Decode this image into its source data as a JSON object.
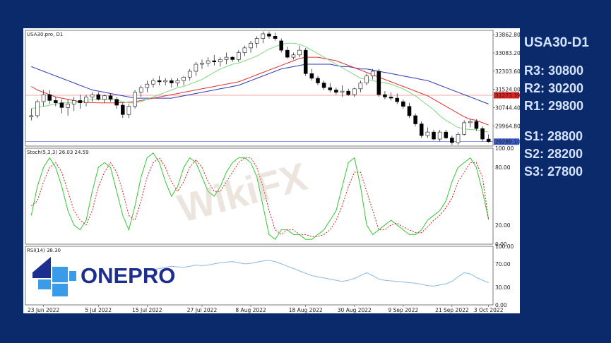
{
  "side_panel": {
    "title": "USA30-D1",
    "resistance": [
      "R3: 30800",
      "R2: 30200",
      "R1: 29800"
    ],
    "support": [
      "S1: 28800",
      "S2: 28200",
      "S3: 27800"
    ]
  },
  "logo": {
    "text": "ONEPRO",
    "icon": "onepro-cross-logo"
  },
  "watermark": {
    "text": "WikiFX"
  },
  "colors": {
    "background": "#0b2a6b",
    "sma_fast": "#7ed87e",
    "sma_mid": "#e03030",
    "sma_slow": "#2a3ab8",
    "stoch_k": "#32c832",
    "stoch_d": "#d02020",
    "rsi": "#8ab8e8",
    "level_line": "#e05050",
    "price_line": "#4a6cc8",
    "logo": "#1c2f8f"
  },
  "chart_data": [
    {
      "type": "candlestick",
      "title": "USA30.pro, D1",
      "x_tick_labels": [
        "23 Jun 2022",
        "5 Jul 2022",
        "15 Jul 2022",
        "27 Jul 2022",
        "8 Aug 2022",
        "18 Aug 2022",
        "30 Aug 2022",
        "9 Sep 2022",
        "21 Sep 2022",
        "3 Oct 2022"
      ],
      "y_tick_labels": [
        "33862.80",
        "33083.20",
        "32303.60",
        "31524.00",
        "30744.40",
        "29964.80"
      ],
      "ylim": [
        29100,
        34050
      ],
      "horizontal_level": {
        "value": 31273.39,
        "label": "31273.39"
      },
      "current_price": {
        "value": 29289.1,
        "label": "29289.10"
      },
      "candles": [
        {
          "o": 30350,
          "h": 30700,
          "l": 30200,
          "c": 30400
        },
        {
          "o": 30400,
          "h": 31100,
          "l": 30300,
          "c": 31000
        },
        {
          "o": 31000,
          "h": 31500,
          "l": 30800,
          "c": 31300
        },
        {
          "o": 31300,
          "h": 31500,
          "l": 30900,
          "c": 31050
        },
        {
          "o": 31050,
          "h": 31200,
          "l": 30800,
          "c": 30950
        },
        {
          "o": 30950,
          "h": 31100,
          "l": 30500,
          "c": 30750
        },
        {
          "o": 30750,
          "h": 31100,
          "l": 30400,
          "c": 30900
        },
        {
          "o": 30900,
          "h": 31200,
          "l": 30600,
          "c": 31050
        },
        {
          "o": 31050,
          "h": 31300,
          "l": 30700,
          "c": 30950
        },
        {
          "o": 30950,
          "h": 31300,
          "l": 30800,
          "c": 31200
        },
        {
          "o": 31200,
          "h": 31400,
          "l": 31000,
          "c": 31300
        },
        {
          "o": 31300,
          "h": 31400,
          "l": 31050,
          "c": 31100
        },
        {
          "o": 31100,
          "h": 31300,
          "l": 30950,
          "c": 31250
        },
        {
          "o": 31250,
          "h": 31350,
          "l": 31000,
          "c": 31100
        },
        {
          "o": 31100,
          "h": 31200,
          "l": 30700,
          "c": 30850
        },
        {
          "o": 30850,
          "h": 30950,
          "l": 30300,
          "c": 30450
        },
        {
          "o": 30450,
          "h": 30900,
          "l": 30300,
          "c": 30800
        },
        {
          "o": 30800,
          "h": 31500,
          "l": 30700,
          "c": 31400
        },
        {
          "o": 31400,
          "h": 31700,
          "l": 31200,
          "c": 31600
        },
        {
          "o": 31600,
          "h": 31900,
          "l": 31400,
          "c": 31750
        },
        {
          "o": 31750,
          "h": 32000,
          "l": 31600,
          "c": 31900
        },
        {
          "o": 31900,
          "h": 32100,
          "l": 31700,
          "c": 31850
        },
        {
          "o": 31850,
          "h": 32000,
          "l": 31700,
          "c": 31900
        },
        {
          "o": 31900,
          "h": 32000,
          "l": 31600,
          "c": 31800
        },
        {
          "o": 31800,
          "h": 32000,
          "l": 31650,
          "c": 31900
        },
        {
          "o": 31900,
          "h": 32100,
          "l": 31700,
          "c": 32050
        },
        {
          "o": 32050,
          "h": 32400,
          "l": 31900,
          "c": 32300
        },
        {
          "o": 32300,
          "h": 32700,
          "l": 32100,
          "c": 32600
        },
        {
          "o": 32600,
          "h": 32800,
          "l": 32400,
          "c": 32650
        },
        {
          "o": 32650,
          "h": 32900,
          "l": 32500,
          "c": 32750
        },
        {
          "o": 32750,
          "h": 33000,
          "l": 32550,
          "c": 32700
        },
        {
          "o": 32700,
          "h": 32900,
          "l": 32500,
          "c": 32800
        },
        {
          "o": 32800,
          "h": 33100,
          "l": 32600,
          "c": 32900
        },
        {
          "o": 32900,
          "h": 32950,
          "l": 32700,
          "c": 32800
        },
        {
          "o": 32800,
          "h": 33200,
          "l": 32700,
          "c": 33100
        },
        {
          "o": 33100,
          "h": 33400,
          "l": 32950,
          "c": 33300
        },
        {
          "o": 33300,
          "h": 33600,
          "l": 33100,
          "c": 33500
        },
        {
          "o": 33500,
          "h": 33800,
          "l": 33300,
          "c": 33700
        },
        {
          "o": 33700,
          "h": 34000,
          "l": 33500,
          "c": 33900
        },
        {
          "o": 33900,
          "h": 34000,
          "l": 33700,
          "c": 33800
        },
        {
          "o": 33800,
          "h": 33950,
          "l": 33600,
          "c": 33700
        },
        {
          "o": 33600,
          "h": 33700,
          "l": 33100,
          "c": 33200
        },
        {
          "o": 33200,
          "h": 33350,
          "l": 32850,
          "c": 32900
        },
        {
          "o": 32900,
          "h": 33100,
          "l": 32800,
          "c": 33000
        },
        {
          "o": 33000,
          "h": 33400,
          "l": 32900,
          "c": 33200
        },
        {
          "o": 33200,
          "h": 33300,
          "l": 32100,
          "c": 32200
        },
        {
          "o": 32200,
          "h": 32400,
          "l": 31900,
          "c": 32000
        },
        {
          "o": 32000,
          "h": 32100,
          "l": 31700,
          "c": 31800
        },
        {
          "o": 31800,
          "h": 31900,
          "l": 31500,
          "c": 31600
        },
        {
          "o": 31600,
          "h": 31800,
          "l": 31400,
          "c": 31500
        },
        {
          "o": 31500,
          "h": 31600,
          "l": 31300,
          "c": 31400
        },
        {
          "o": 31400,
          "h": 31700,
          "l": 31200,
          "c": 31450
        },
        {
          "o": 31450,
          "h": 31550,
          "l": 31250,
          "c": 31300
        },
        {
          "o": 31300,
          "h": 31600,
          "l": 31200,
          "c": 31550
        },
        {
          "o": 31550,
          "h": 31900,
          "l": 31400,
          "c": 31800
        },
        {
          "o": 31800,
          "h": 32200,
          "l": 31700,
          "c": 32100
        },
        {
          "o": 32100,
          "h": 32400,
          "l": 31950,
          "c": 32300
        },
        {
          "o": 32300,
          "h": 32400,
          "l": 31200,
          "c": 31300
        },
        {
          "o": 31300,
          "h": 31450,
          "l": 31100,
          "c": 31200
        },
        {
          "o": 31200,
          "h": 31400,
          "l": 31050,
          "c": 31150
        },
        {
          "o": 31150,
          "h": 31350,
          "l": 30900,
          "c": 31000
        },
        {
          "o": 31000,
          "h": 31100,
          "l": 30700,
          "c": 30800
        },
        {
          "o": 30800,
          "h": 30950,
          "l": 30300,
          "c": 30400
        },
        {
          "o": 30400,
          "h": 30500,
          "l": 29950,
          "c": 30050
        },
        {
          "o": 30050,
          "h": 30150,
          "l": 29450,
          "c": 29550
        },
        {
          "o": 29550,
          "h": 29900,
          "l": 29450,
          "c": 29700
        },
        {
          "o": 29700,
          "h": 29800,
          "l": 29350,
          "c": 29400
        },
        {
          "o": 29400,
          "h": 29800,
          "l": 29300,
          "c": 29700
        },
        {
          "o": 29700,
          "h": 29800,
          "l": 29400,
          "c": 29450
        },
        {
          "o": 29450,
          "h": 29550,
          "l": 29150,
          "c": 29250
        },
        {
          "o": 29250,
          "h": 29700,
          "l": 29150,
          "c": 29600
        },
        {
          "o": 29600,
          "h": 30200,
          "l": 29550,
          "c": 30100
        },
        {
          "o": 30100,
          "h": 30250,
          "l": 29900,
          "c": 30150
        },
        {
          "o": 30150,
          "h": 30250,
          "l": 29750,
          "c": 29850
        },
        {
          "o": 29850,
          "h": 29950,
          "l": 29300,
          "c": 29400
        },
        {
          "o": 29400,
          "h": 29600,
          "l": 29250,
          "c": 29290
        }
      ],
      "sma_fast": [
        30700,
        30750,
        30800,
        30850,
        30900,
        30950,
        30950,
        30950,
        31000,
        31050,
        31100,
        31100,
        31100,
        31120,
        31080,
        31000,
        30950,
        30950,
        31000,
        31100,
        31200,
        31300,
        31400,
        31500,
        31600,
        31650,
        31750,
        31850,
        31950,
        32100,
        32250,
        32400,
        32500,
        32600,
        32650,
        32750,
        32850,
        32950,
        33100,
        33250,
        33350,
        33450,
        33500,
        33500,
        33450,
        33350,
        33200,
        33050,
        32900,
        32750,
        32600,
        32450,
        32300,
        32150,
        32000,
        31950,
        31900,
        31850,
        31800,
        31750,
        31650,
        31550,
        31400,
        31250,
        31050,
        30850,
        30650,
        30400,
        30200,
        30050,
        29900,
        29850,
        29800,
        29800,
        29750,
        29700
      ],
      "sma_mid": [
        31650,
        31500,
        31400,
        31300,
        31200,
        31150,
        31100,
        31050,
        31000,
        30980,
        30960,
        30950,
        30950,
        30950,
        30950,
        30960,
        30980,
        31000,
        31050,
        31100,
        31150,
        31200,
        31250,
        31300,
        31350,
        31400,
        31450,
        31500,
        31550,
        31600,
        31650,
        31700,
        31750,
        31800,
        31850,
        31950,
        32050,
        32150,
        32250,
        32350,
        32450,
        32550,
        32650,
        32750,
        32850,
        32900,
        32900,
        32900,
        32850,
        32800,
        32750,
        32650,
        32550,
        32450,
        32350,
        32250,
        32150,
        32050,
        31950,
        31850,
        31750,
        31650,
        31550,
        31450,
        31350,
        31250,
        31100,
        30950,
        30800,
        30650,
        30500,
        30350,
        30250,
        30200,
        30100,
        30000
      ],
      "sma_slow": [
        32500,
        32400,
        32300,
        32200,
        32100,
        32000,
        31900,
        31800,
        31700,
        31600,
        31500,
        31450,
        31400,
        31350,
        31300,
        31250,
        31200,
        31150,
        31150,
        31150,
        31150,
        31150,
        31150,
        31150,
        31200,
        31250,
        31300,
        31350,
        31400,
        31450,
        31500,
        31550,
        31600,
        31650,
        31700,
        31800,
        31900,
        32000,
        32100,
        32200,
        32300,
        32400,
        32450,
        32500,
        32550,
        32600,
        32600,
        32600,
        32600,
        32600,
        32550,
        32500,
        32500,
        32450,
        32400,
        32400,
        32350,
        32300,
        32250,
        32200,
        32150,
        32100,
        32050,
        32000,
        31950,
        31900,
        31800,
        31700,
        31600,
        31500,
        31400,
        31300,
        31200,
        31100,
        31000,
        30900
      ],
      "series_names": []
    },
    {
      "type": "line",
      "title": "Stoch(5,3,3) 26.03 24.59",
      "y_tick_labels": [
        "100.00",
        "80.00",
        "20.00",
        "0.00"
      ],
      "ylim": [
        0,
        100
      ],
      "series": [
        {
          "values": [
            30,
            60,
            80,
            90,
            80,
            60,
            35,
            20,
            15,
            25,
            55,
            80,
            85,
            80,
            55,
            30,
            15,
            40,
            70,
            90,
            95,
            85,
            65,
            50,
            60,
            80,
            90,
            85,
            70,
            55,
            50,
            60,
            75,
            85,
            90,
            90,
            85,
            70,
            40,
            10,
            5,
            15,
            15,
            10,
            10,
            5,
            5,
            10,
            15,
            25,
            35,
            60,
            85,
            90,
            60,
            20,
            10,
            15,
            20,
            25,
            20,
            15,
            10,
            10,
            15,
            25,
            30,
            35,
            45,
            65,
            80,
            85,
            90,
            80,
            55,
            26
          ]
        },
        {
          "values": [
            40,
            45,
            65,
            80,
            85,
            75,
            55,
            35,
            25,
            20,
            35,
            60,
            75,
            85,
            75,
            55,
            30,
            25,
            45,
            70,
            85,
            90,
            80,
            65,
            55,
            65,
            80,
            88,
            80,
            65,
            55,
            55,
            65,
            75,
            85,
            90,
            90,
            80,
            60,
            35,
            15,
            10,
            15,
            15,
            10,
            10,
            8,
            8,
            10,
            15,
            25,
            40,
            60,
            75,
            75,
            55,
            35,
            15,
            15,
            20,
            22,
            18,
            15,
            12,
            12,
            18,
            25,
            30,
            38,
            48,
            65,
            75,
            85,
            85,
            70,
            25
          ]
        }
      ]
    },
    {
      "type": "line",
      "title": "RSI(14) 38.30",
      "y_tick_labels": [
        "100.00",
        "70.00",
        "30.00",
        "0.00"
      ],
      "ylim": [
        0,
        100
      ],
      "series": [
        {
          "values": [
            null,
            null,
            null,
            null,
            null,
            null,
            null,
            null,
            null,
            null,
            null,
            null,
            null,
            null,
            null,
            null,
            null,
            null,
            null,
            null,
            60,
            62,
            64,
            66,
            65,
            64,
            66,
            68,
            67,
            68,
            70,
            72,
            73,
            74,
            72,
            70,
            71,
            73,
            75,
            76,
            74,
            70,
            66,
            62,
            58,
            54,
            50,
            48,
            46,
            44,
            42,
            40,
            42,
            45,
            50,
            55,
            50,
            44,
            42,
            41,
            40,
            39,
            38,
            37,
            35,
            33,
            32,
            34,
            36,
            40,
            48,
            55,
            53,
            47,
            42,
            38
          ]
        }
      ]
    }
  ]
}
